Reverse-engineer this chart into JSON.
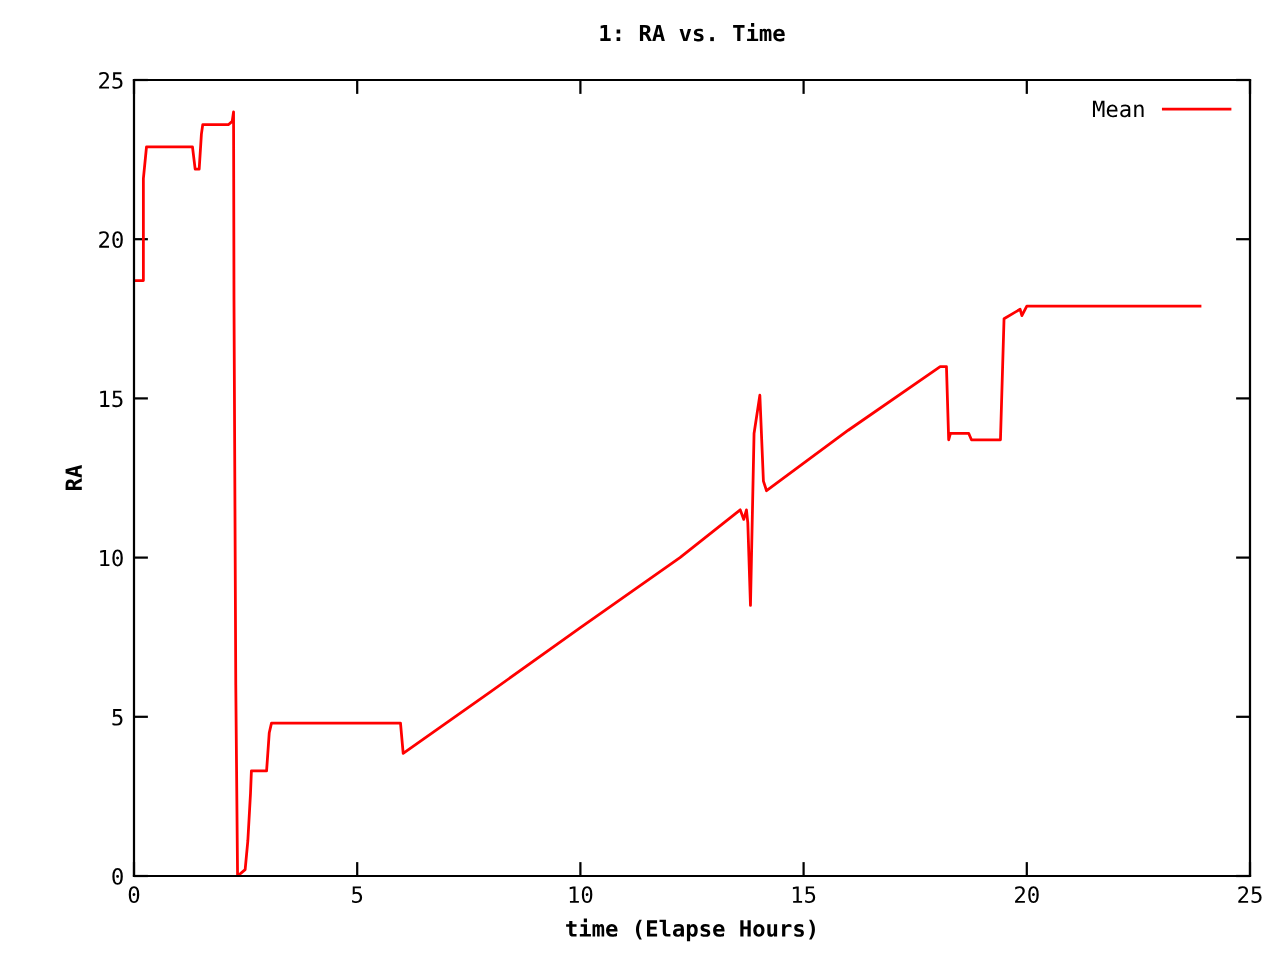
{
  "chart_data": {
    "type": "line",
    "title": "1: RA vs. Time",
    "xlabel": "time (Elapse Hours)",
    "ylabel": "RA",
    "xlim": [
      0,
      25
    ],
    "ylim": [
      0,
      25
    ],
    "xticks": [
      0,
      5,
      10,
      15,
      20,
      25
    ],
    "yticks": [
      0,
      5,
      10,
      15,
      20,
      25
    ],
    "grid": false,
    "legend": "top right",
    "marker": "none",
    "line_style": "solid",
    "series": [
      {
        "name": "Mean",
        "color": "#ff0000",
        "x": [
          0,
          0.21,
          0.21,
          0.28,
          0.28,
          1.31,
          1.37,
          1.46,
          1.51,
          1.54,
          2.12,
          2.2,
          2.23,
          2.24,
          2.28,
          2.32,
          2.49,
          2.55,
          2.61,
          2.63,
          2.97,
          3.03,
          3.08,
          5.97,
          6.03,
          8.0,
          10.0,
          12.23,
          13.58,
          13.66,
          13.72,
          13.75,
          13.81,
          13.89,
          14.02,
          14.1,
          14.17,
          16.0,
          18.06,
          18.2,
          18.25,
          18.29,
          18.7,
          18.76,
          19.41,
          19.49,
          19.85,
          19.89,
          20.0,
          23.88
        ],
        "values": [
          18.7,
          18.7,
          21.9,
          22.9,
          22.9,
          22.9,
          22.2,
          22.2,
          23.3,
          23.6,
          23.6,
          23.7,
          24.0,
          18.1,
          6.0,
          0,
          0.2,
          1.1,
          2.6,
          3.3,
          3.3,
          4.5,
          4.8,
          4.8,
          3.85,
          5.8,
          7.8,
          10.0,
          11.5,
          11.2,
          11.5,
          11.1,
          8.5,
          13.9,
          15.1,
          12.4,
          12.1,
          14.0,
          16.0,
          16.0,
          13.7,
          13.9,
          13.9,
          13.7,
          13.7,
          17.5,
          17.8,
          17.6,
          17.9,
          17.9
        ]
      }
    ]
  }
}
